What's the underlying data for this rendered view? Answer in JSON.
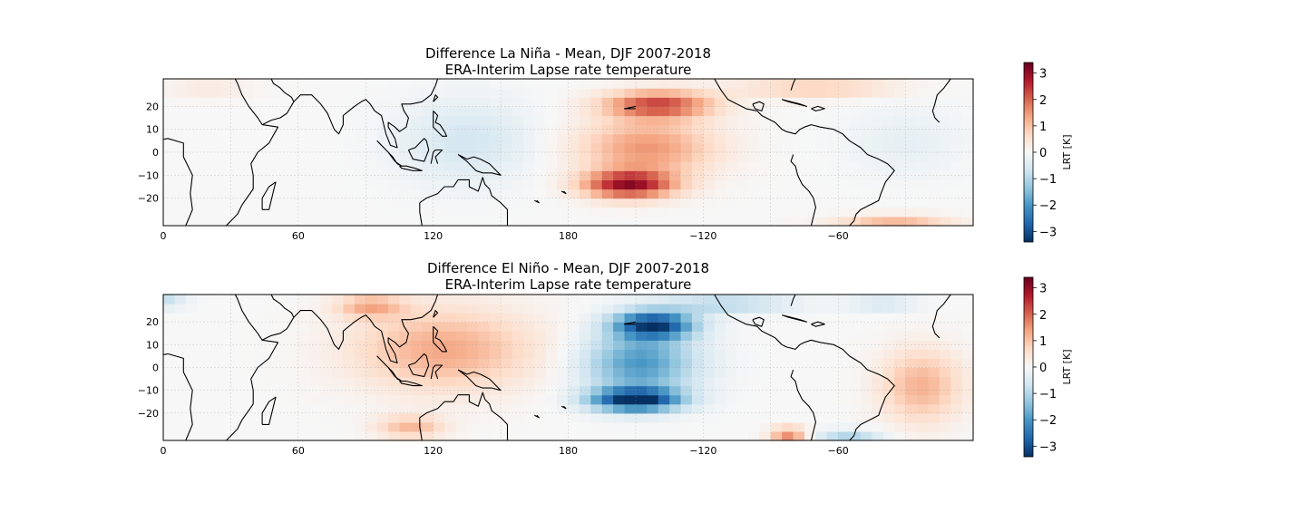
{
  "chart_data": [
    {
      "type": "heatmap",
      "title": "Difference La Niña -  Mean, DJF 2007-2018",
      "subtitle": "ERA-Interim Lapse rate temperature",
      "xticks": [
        "0",
        "60",
        "120",
        "180",
        "−120",
        "−60"
      ],
      "yticks": [
        "20",
        "10",
        "0",
        "−10",
        "−20"
      ],
      "xlim": [
        0,
        360
      ],
      "ylim": [
        -32,
        32
      ],
      "colorbar": {
        "label": "LRT [K]",
        "ticks": [
          "3",
          "2",
          "1",
          "0",
          "−1",
          "−2",
          "−3"
        ],
        "range": [
          -3.4,
          3.4
        ],
        "colormap": "RdBu_r"
      },
      "anomaly_regions": [
        {
          "lon": [
            180,
            260
          ],
          "lat": [
            -25,
            28
          ],
          "value": 2.0,
          "note": "central/east Pacific warm"
        },
        {
          "lon": [
            190,
            225
          ],
          "lat": [
            -20,
            -10
          ],
          "value": 3.0
        },
        {
          "lon": [
            200,
            240
          ],
          "lat": [
            15,
            25
          ],
          "value": 2.3
        },
        {
          "lon": [
            100,
            170
          ],
          "lat": [
            -10,
            30
          ],
          "value": -0.6,
          "note": "warm pool slightly negative"
        },
        {
          "lon": [
            250,
            330
          ],
          "lat": [
            22,
            32
          ],
          "value": 1.0
        },
        {
          "lon": [
            295,
            360
          ],
          "lat": [
            -32,
            -27
          ],
          "value": 1.2
        }
      ]
    },
    {
      "type": "heatmap",
      "title": "Difference El Niño -  Mean, DJF 2007-2018",
      "subtitle": "ERA-Interim Lapse rate temperature",
      "xticks": [
        "0",
        "60",
        "120",
        "180",
        "−120",
        "−60"
      ],
      "yticks": [
        "20",
        "10",
        "0",
        "−10",
        "−20"
      ],
      "xlim": [
        0,
        360
      ],
      "ylim": [
        -32,
        32
      ],
      "colorbar": {
        "label": "LRT [K]",
        "ticks": [
          "3",
          "2",
          "1",
          "0",
          "−1",
          "−2",
          "−3"
        ],
        "range": [
          -3.4,
          3.4
        ],
        "colormap": "RdBu_r"
      },
      "anomaly_regions": [
        {
          "lon": [
            180,
            255
          ],
          "lat": [
            -25,
            28
          ],
          "value": -2.2,
          "note": "central/east Pacific cold"
        },
        {
          "lon": [
            195,
            235
          ],
          "lat": [
            -20,
            -10
          ],
          "value": -3.2
        },
        {
          "lon": [
            200,
            235
          ],
          "lat": [
            15,
            25
          ],
          "value": -3.0
        },
        {
          "lon": [
            70,
            175
          ],
          "lat": [
            -15,
            30
          ],
          "value": 1.4,
          "note": "warm pool positive"
        },
        {
          "lon": [
            85,
            105
          ],
          "lat": [
            22,
            30
          ],
          "value": 2.3
        },
        {
          "lon": [
            95,
            125
          ],
          "lat": [
            -30,
            -20
          ],
          "value": 2.0
        },
        {
          "lon": [
            315,
            355
          ],
          "lat": [
            -22,
            22
          ],
          "value": 1.3
        },
        {
          "lon": [
            270,
            285
          ],
          "lat": [
            -30,
            -22
          ],
          "value": 2.2
        }
      ]
    }
  ]
}
